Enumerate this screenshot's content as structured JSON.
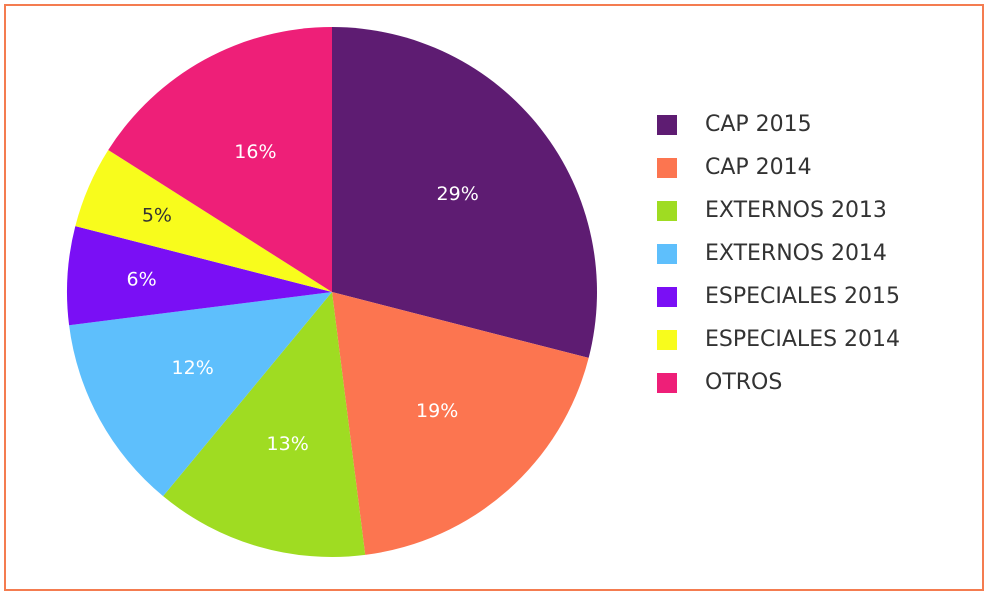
{
  "chart_data": {
    "type": "pie",
    "categories": [
      "CAP 2015",
      "CAP 2014",
      "EXTERNOS 2013",
      "EXTERNOS 2014",
      "ESPECIALES 2015",
      "ESPECIALES 2014",
      "OTROS"
    ],
    "values": [
      29,
      19,
      13,
      12,
      6,
      5,
      16
    ],
    "value_labels": [
      "29%",
      "19%",
      "13%",
      "12%",
      "6%",
      "5%",
      "16%"
    ],
    "colors": [
      "#5e1c72",
      "#fc7550",
      "#9fdc22",
      "#5ebffc",
      "#7a0ff5",
      "#f8fc1c",
      "#ee1f78"
    ],
    "legend": "right"
  }
}
